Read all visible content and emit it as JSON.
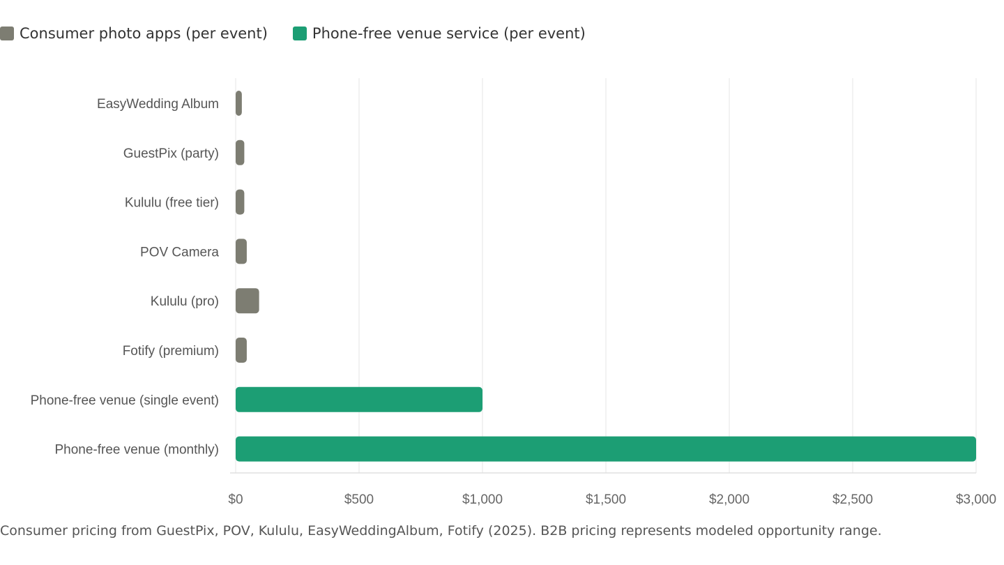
{
  "legend": {
    "consumer": {
      "label": "Consumer photo apps (per event)",
      "color": "#7d7d72"
    },
    "b2b": {
      "label": "Phone-free venue service (per event)",
      "color": "#1c9e74"
    }
  },
  "chart_data": {
    "type": "bar",
    "orientation": "horizontal",
    "categories": [
      "EasyWedding Album",
      "GuestPix (party)",
      "Kululu (free tier)",
      "POV Camera",
      "Kululu (pro)",
      "Fotify (premium)",
      "Phone-free venue (single event)",
      "Phone-free venue (monthly)"
    ],
    "values": [
      25,
      35,
      35,
      45,
      95,
      45,
      1000,
      3000
    ],
    "series_membership": [
      "consumer",
      "consumer",
      "consumer",
      "consumer",
      "consumer",
      "consumer",
      "b2b",
      "b2b"
    ],
    "xlim": [
      0,
      3000
    ],
    "xticks": [
      0,
      500,
      1000,
      1500,
      2000,
      2500,
      3000
    ],
    "xtick_labels": [
      "$0",
      "$500",
      "$1,000",
      "$1,500",
      "$2,000",
      "$2,500",
      "$3,000"
    ],
    "grid": true,
    "legend_position": "top-left"
  },
  "footnote": "Consumer pricing from GuestPix, POV, Kululu, EasyWeddingAlbum, Fotify (2025). B2B pricing represents modeled opportunity range."
}
